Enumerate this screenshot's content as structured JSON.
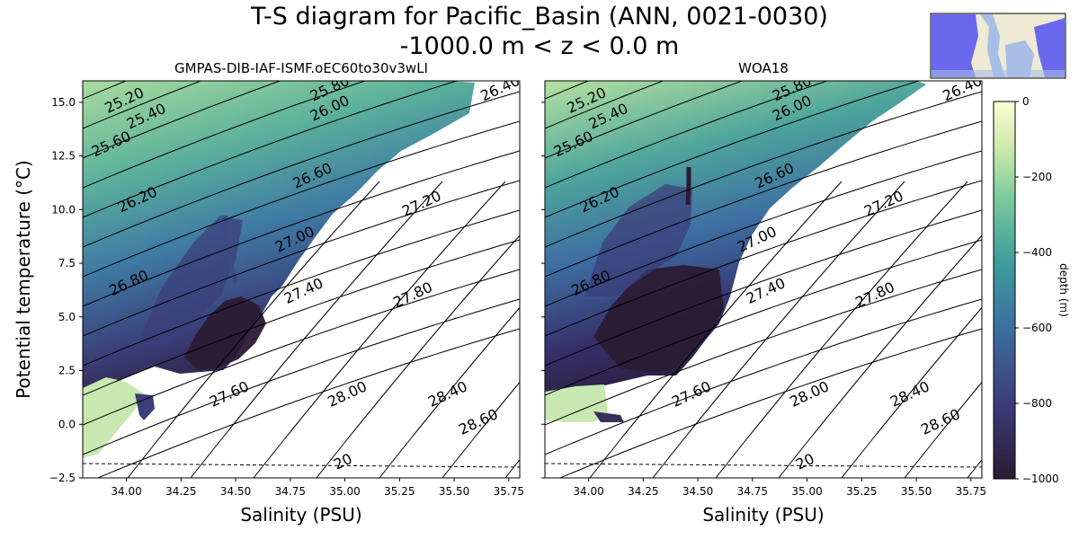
{
  "figure": {
    "title_line1": "T-S diagram for Pacific_Basin (ANN, 0021-0030)",
    "title_line2": "-1000.0 m < z < 0.0 m"
  },
  "colors": {
    "deep": "#2b1b34",
    "deep2": "#3b2f5e",
    "mid": "#3f73a3",
    "mid2": "#3a9b9b",
    "shallow": "#77c99a",
    "surface": "#e4f3c3",
    "top": "#fbfdd8",
    "map_ocean": "#a7bde6",
    "map_land": "#eeead4",
    "map_region": "#5a5af0"
  },
  "chart_data": [
    {
      "type": "scatter",
      "subtitle": "GMPAS-DIB-IAF-ISMF.oEC60to30v3wLI",
      "xlabel": "Salinity (PSU)",
      "ylabel": "Potential temperature (°C)",
      "xlim": [
        33.8,
        35.8
      ],
      "ylim": [
        -2.5,
        16.0
      ],
      "xticks": [
        "34.00",
        "34.25",
        "34.50",
        "34.75",
        "35.00",
        "35.25",
        "35.50",
        "35.75"
      ],
      "xtick_values": [
        34.0,
        34.25,
        34.5,
        34.75,
        35.0,
        35.25,
        35.5,
        35.75
      ],
      "yticks": [
        "−2.5",
        "0.0",
        "2.5",
        "5.0",
        "7.5",
        "10.0",
        "12.5",
        "15.0"
      ],
      "ytick_values": [
        -2.5,
        0.0,
        2.5,
        5.0,
        7.5,
        10.0,
        12.5,
        15.0
      ],
      "color_variable": "depth (m)",
      "freezing_line_temperature": -1.85,
      "density_contour_labels": [
        "25.20",
        "25.40",
        "25.60",
        "25.80",
        "26.00",
        "26.20",
        "26.40",
        "26.60",
        "26.80",
        "27.00",
        "27.20",
        "27.40",
        "27.60",
        "27.80",
        "28.00",
        "28.40",
        "28.60",
        "20"
      ],
      "cloud": [
        {
          "S": 33.8,
          "T": 15.5,
          "depth": -60
        },
        {
          "S": 34.3,
          "T": 13.5,
          "depth": -200
        },
        {
          "S": 34.6,
          "T": 11.0,
          "depth": -400
        },
        {
          "S": 34.4,
          "T": 4.0,
          "depth": -950
        },
        {
          "S": 34.05,
          "T": 0.4,
          "depth": -900
        },
        {
          "S": 33.9,
          "T": 1.5,
          "depth": -150
        }
      ]
    },
    {
      "type": "scatter",
      "subtitle": "WOA18",
      "xlabel": "Salinity (PSU)",
      "ylabel": "",
      "xlim": [
        33.8,
        35.8
      ],
      "ylim": [
        -2.5,
        16.0
      ],
      "xticks": [
        "34.00",
        "34.25",
        "34.50",
        "34.75",
        "35.00",
        "35.25",
        "35.50",
        "35.75"
      ],
      "xtick_values": [
        34.0,
        34.25,
        34.5,
        34.75,
        35.0,
        35.25,
        35.5,
        35.75
      ],
      "color_variable": "depth (m)",
      "freezing_line_temperature": -1.85,
      "density_contour_labels": [
        "25.20",
        "25.40",
        "25.60",
        "25.80",
        "26.00",
        "26.20",
        "26.40",
        "26.60",
        "26.80",
        "27.00",
        "27.20",
        "27.40",
        "27.60",
        "27.80",
        "28.00",
        "28.40",
        "28.60",
        "20"
      ],
      "cloud": [
        {
          "S": 33.8,
          "T": 15.5,
          "depth": -60
        },
        {
          "S": 34.3,
          "T": 12.0,
          "depth": -500
        },
        {
          "S": 34.5,
          "T": 5.0,
          "depth": -950
        },
        {
          "S": 34.1,
          "T": 0.2,
          "depth": -900
        },
        {
          "S": 33.9,
          "T": 1.5,
          "depth": -150
        }
      ]
    }
  ],
  "colorbar": {
    "label": "depth (m)",
    "range": [
      -1000,
      0
    ],
    "ticks": [
      "0",
      "−200",
      "−400",
      "−600",
      "−800",
      "−1000"
    ],
    "tick_values": [
      0,
      -200,
      -400,
      -600,
      -800,
      -1000
    ]
  }
}
